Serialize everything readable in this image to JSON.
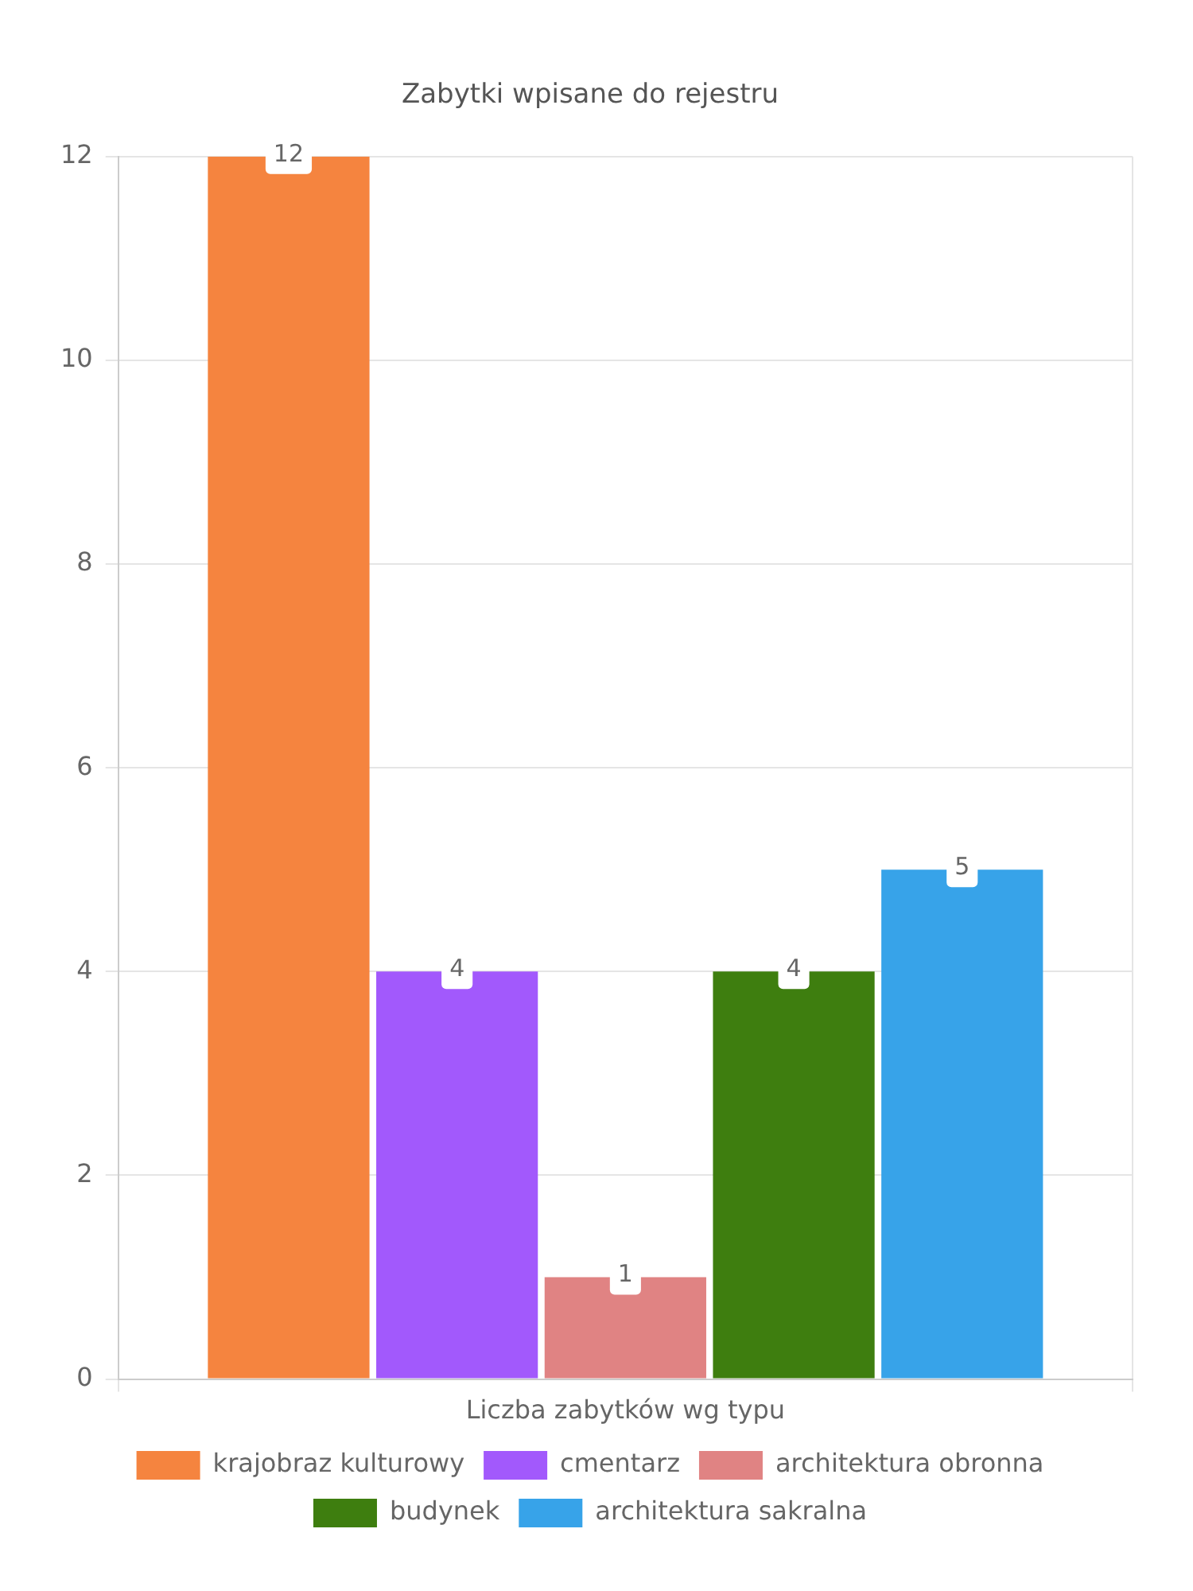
{
  "chart_data": {
    "type": "bar",
    "title": "Zabytki wpisane do rejestru",
    "categories": [
      "Liczba zabytków wg typu"
    ],
    "series": [
      {
        "name": "krajobraz kulturowy",
        "color": "#f5843f",
        "values": [
          12
        ]
      },
      {
        "name": "cmentarz",
        "color": "#a259fc",
        "values": [
          4
        ]
      },
      {
        "name": "architektura obronna",
        "color": "#e08383",
        "values": [
          1
        ]
      },
      {
        "name": "budynek",
        "color": "#3e7e0f",
        "values": [
          4
        ]
      },
      {
        "name": "architektura sakralna",
        "color": "#37a3e9",
        "values": [
          5
        ]
      }
    ],
    "ylim": [
      0,
      12
    ],
    "yticks": [
      0,
      2,
      4,
      6,
      8,
      10,
      12
    ],
    "grid": true,
    "legend": "bottom",
    "data_labels": true
  }
}
